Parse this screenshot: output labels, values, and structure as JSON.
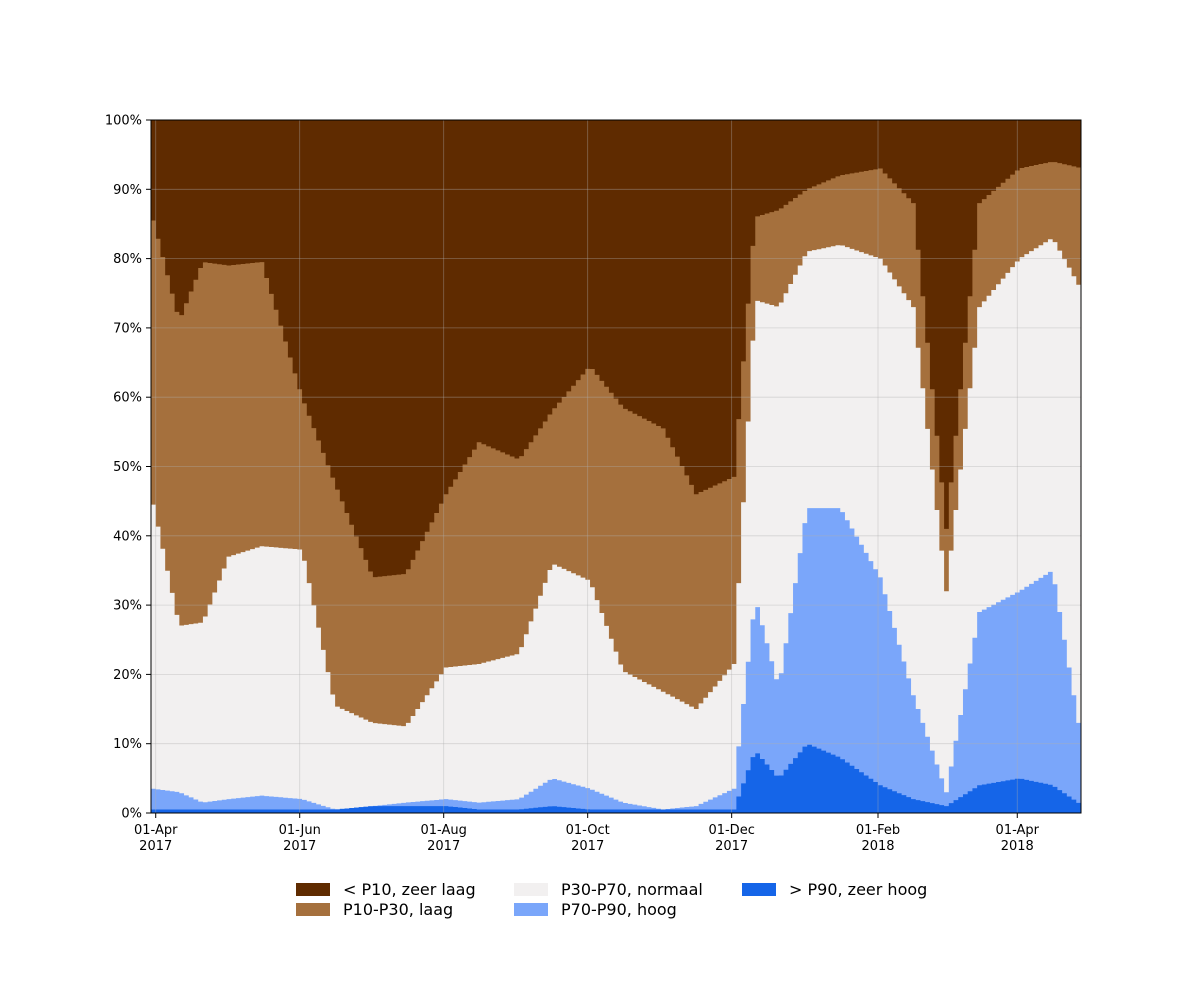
{
  "chart_data": {
    "type": "area",
    "stacked": true,
    "normalized": true,
    "x": [
      "2017-03-30",
      "2017-04-10",
      "2017-04-20",
      "2017-05-01",
      "2017-05-15",
      "2017-06-01",
      "2017-06-15",
      "2017-07-01",
      "2017-07-15",
      "2017-08-01",
      "2017-08-15",
      "2017-09-01",
      "2017-09-15",
      "2017-10-01",
      "2017-10-15",
      "2017-11-01",
      "2017-11-15",
      "2017-12-01",
      "2017-12-10",
      "2017-12-20",
      "2018-01-01",
      "2018-01-15",
      "2018-02-01",
      "2018-02-15",
      "2018-03-01",
      "2018-03-15",
      "2018-04-01",
      "2018-04-15",
      "2018-04-28"
    ],
    "series": [
      {
        "name": "> P90, zeer hoog",
        "color": "#1565e8",
        "values": [
          0.5,
          0.5,
          0.5,
          0.5,
          0.5,
          0.5,
          0.5,
          1,
          1,
          1,
          0.5,
          0.5,
          1,
          0.5,
          0.5,
          0.5,
          0.5,
          0.5,
          9,
          5,
          10,
          8,
          4,
          2,
          1,
          4,
          5,
          4,
          1
        ]
      },
      {
        "name": "P70-P90, hoog",
        "color": "#7aa6fa",
        "values": [
          3,
          2.5,
          1,
          1.5,
          2,
          1.5,
          0,
          0,
          0.5,
          1,
          1,
          1.5,
          4,
          3,
          1,
          0,
          0.5,
          3,
          22,
          13,
          34,
          36,
          30,
          15,
          2,
          25,
          27,
          31,
          8
        ]
      },
      {
        "name": "P30-P70, normaal",
        "color": "#f2f0f0",
        "values": [
          41,
          24,
          26,
          35,
          36,
          36,
          15,
          12,
          11,
          19,
          20,
          21,
          31,
          30,
          19,
          17,
          14,
          18,
          43,
          55,
          37,
          38,
          46,
          56,
          29,
          44,
          48,
          48,
          66
        ]
      },
      {
        "name": "P10-P30, laag",
        "color": "#a5703d",
        "values": [
          41,
          44,
          52,
          42,
          41,
          22,
          32,
          21,
          22,
          25,
          32,
          28,
          22,
          31,
          38,
          38,
          31,
          27,
          12,
          14,
          9,
          10,
          13,
          15,
          9,
          15,
          13,
          11,
          18
        ]
      },
      {
        "name": "< P10, zeer laag",
        "color": "#5f2b00",
        "values": [
          14.5,
          29,
          20.5,
          21,
          20.5,
          40,
          52.5,
          66,
          65.5,
          54,
          46.5,
          49,
          42,
          35.5,
          41.5,
          44.5,
          54,
          51.5,
          14,
          13,
          10,
          8,
          7,
          12,
          59,
          12,
          7,
          6,
          7
        ]
      }
    ],
    "ylim": [
      0,
      100
    ],
    "yticks": [
      "0%",
      "10%",
      "20%",
      "30%",
      "40%",
      "50%",
      "60%",
      "70%",
      "80%",
      "90%",
      "100%"
    ],
    "xticks": [
      {
        "date": "2017-04-01",
        "line1": "01-Apr",
        "line2": "2017"
      },
      {
        "date": "2017-06-01",
        "line1": "01-Jun",
        "line2": "2017"
      },
      {
        "date": "2017-08-01",
        "line1": "01-Aug",
        "line2": "2017"
      },
      {
        "date": "2017-10-01",
        "line1": "01-Oct",
        "line2": "2017"
      },
      {
        "date": "2017-12-01",
        "line1": "01-Dec",
        "line2": "2017"
      },
      {
        "date": "2018-02-01",
        "line1": "01-Feb",
        "line2": "2018"
      },
      {
        "date": "2018-04-01",
        "line1": "01-Apr",
        "line2": "2018"
      }
    ],
    "xrange": [
      "2017-03-30",
      "2018-04-28"
    ],
    "grid": true,
    "legend": {
      "placement": "bottom",
      "entries": [
        {
          "label": "< P10, zeer laag",
          "color": "#5f2b00"
        },
        {
          "label": "P30-P70, normaal",
          "color": "#f2f0f0"
        },
        {
          "label": "> P90, zeer hoog",
          "color": "#1565e8"
        },
        {
          "label": "P10-P30, laag",
          "color": "#a5703d"
        },
        {
          "label": "P70-P90, hoog",
          "color": "#7aa6fa"
        }
      ]
    },
    "title": "",
    "xlabel": "",
    "ylabel": ""
  }
}
